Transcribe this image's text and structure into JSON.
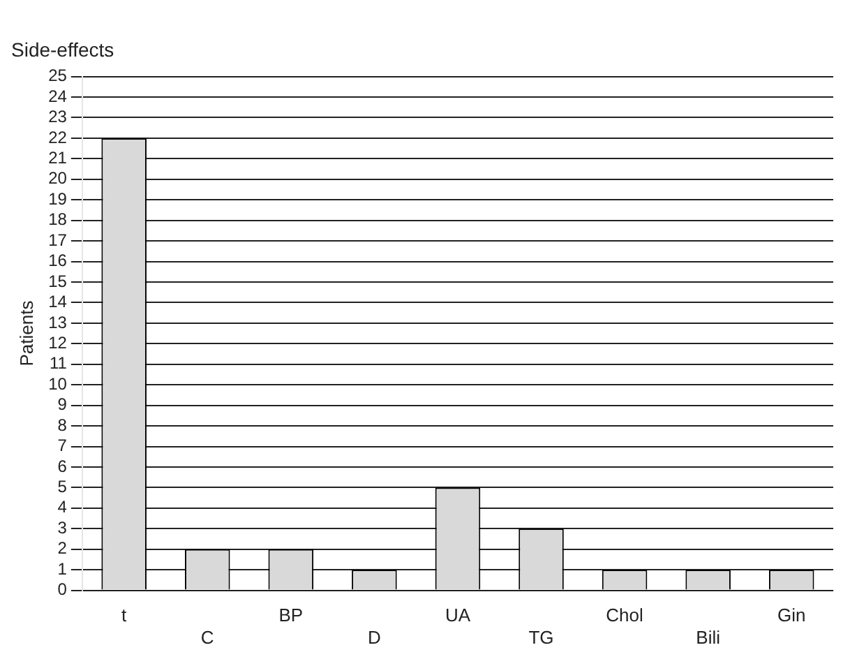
{
  "chart_data": {
    "type": "bar",
    "title": "Side-effects",
    "ylabel": "Patients",
    "categories": [
      "t",
      "C",
      "BP",
      "D",
      "UA",
      "TG",
      "Chol",
      "Bili",
      "Gin"
    ],
    "values": [
      22,
      2,
      2,
      1,
      5,
      3,
      1,
      1,
      1
    ],
    "color": "#d9d9d9",
    "ylim": [
      0,
      25
    ],
    "yticks": [
      0,
      1,
      2,
      3,
      4,
      5,
      6,
      7,
      8,
      9,
      10,
      11,
      12,
      13,
      14,
      15,
      16,
      17,
      18,
      19,
      20,
      21,
      22,
      23,
      24,
      25
    ],
    "grid": "y",
    "legend": false
  }
}
